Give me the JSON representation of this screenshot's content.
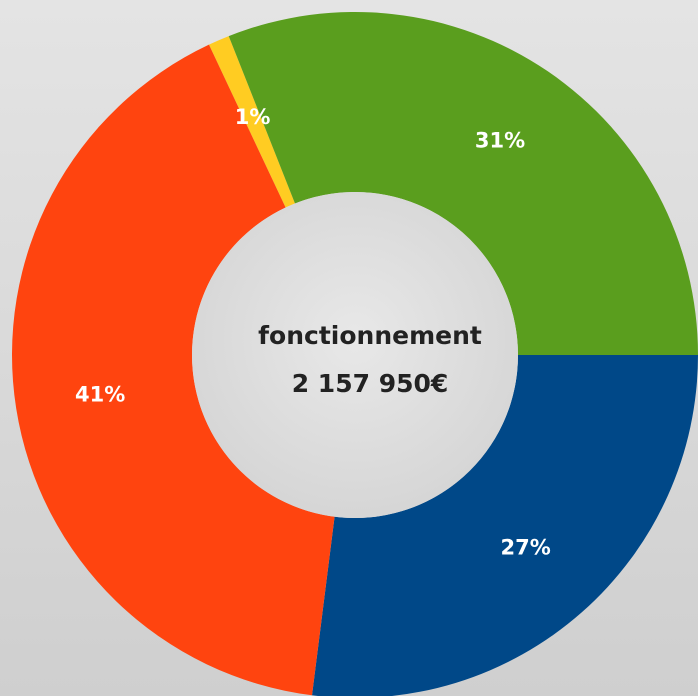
{
  "chart_data": {
    "type": "donut",
    "center_text": [
      "fonctionnement",
      "2 157 950€"
    ],
    "series": [
      {
        "color": "#ffcc22",
        "values": [
          1
        ],
        "value_labels": [
          "1%"
        ]
      },
      {
        "color": "#5a9e1e",
        "values": [
          31
        ],
        "value_labels": [
          "31%"
        ]
      },
      {
        "color": "#004888",
        "values": [
          27
        ],
        "value_labels": [
          "27%"
        ]
      },
      {
        "color": "#ff440f",
        "values": [
          41
        ],
        "value_labels": [
          "41%"
        ]
      }
    ]
  }
}
